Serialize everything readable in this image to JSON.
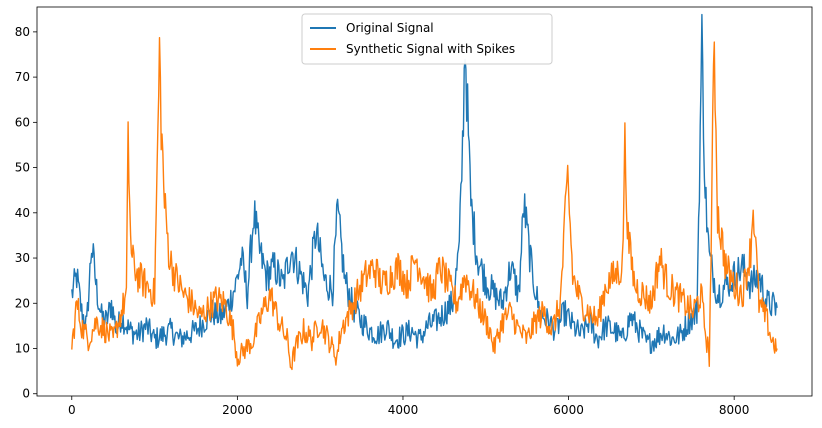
{
  "chart_data": {
    "type": "line",
    "title": "",
    "xlabel": "",
    "ylabel": "",
    "xlim": [
      -420,
      8940
    ],
    "ylim": [
      -0.5,
      85.5
    ],
    "xticks": [
      0,
      2000,
      4000,
      6000,
      8000
    ],
    "yticks": [
      0,
      10,
      20,
      30,
      40,
      50,
      60,
      70,
      80
    ],
    "xtick_labels": [
      "0",
      "2000",
      "4000",
      "6000",
      "8000"
    ],
    "ytick_labels": [
      "0",
      "10",
      "20",
      "30",
      "40",
      "50",
      "60",
      "70",
      "80"
    ],
    "grid": false,
    "legend": "upper center",
    "n_points": 8519,
    "series": [
      {
        "name": "Original Signal",
        "color": "#1f77b4",
        "x": [
          0,
          60,
          120,
          180,
          240,
          300,
          360,
          420,
          480,
          540,
          600,
          700,
          800,
          900,
          1000,
          1100,
          1200,
          1300,
          1400,
          1500,
          1600,
          1700,
          1800,
          1900,
          1980,
          2050,
          2120,
          2200,
          2260,
          2350,
          2450,
          2550,
          2650,
          2750,
          2850,
          2950,
          3050,
          3150,
          3210,
          3300,
          3400,
          3500,
          3600,
          3700,
          3800,
          3900,
          4000,
          4100,
          4200,
          4300,
          4400,
          4500,
          4600,
          4680,
          4720,
          4750,
          4780,
          4820,
          4900,
          5000,
          5100,
          5200,
          5300,
          5400,
          5460,
          5550,
          5650,
          5750,
          5850,
          5950,
          6050,
          6150,
          6250,
          6350,
          6450,
          6550,
          6650,
          6750,
          6850,
          6950,
          7050,
          7150,
          7250,
          7350,
          7450,
          7550,
          7610,
          7650,
          7700,
          7800,
          7900,
          8000,
          8100,
          8200,
          8300,
          8400,
          8519
        ],
        "y": [
          22,
          26,
          18,
          15,
          33,
          23,
          17,
          16,
          20,
          14,
          17,
          14,
          13,
          15,
          12,
          13,
          14,
          12,
          13,
          14,
          16,
          18,
          17,
          20,
          24,
          30,
          22,
          40,
          32,
          26,
          28,
          24,
          32,
          27,
          22,
          36,
          25,
          23,
          40,
          25,
          19,
          16,
          14,
          13,
          15,
          12,
          13,
          14,
          12,
          15,
          16,
          18,
          20,
          32,
          55,
          78,
          62,
          42,
          30,
          25,
          22,
          20,
          28,
          22,
          42,
          28,
          18,
          16,
          14,
          18,
          15,
          13,
          16,
          12,
          15,
          14,
          12,
          17,
          14,
          11,
          12,
          14,
          12,
          13,
          16,
          18,
          78,
          45,
          30,
          22,
          24,
          26,
          28,
          24,
          26,
          20,
          19
        ]
      },
      {
        "name": "Synthetic Signal with Spikes",
        "color": "#ff7f0e",
        "x": [
          0,
          60,
          120,
          200,
          300,
          400,
          500,
          600,
          660,
          680,
          720,
          800,
          900,
          1000,
          1060,
          1080,
          1120,
          1180,
          1250,
          1350,
          1450,
          1550,
          1650,
          1750,
          1850,
          1950,
          2000,
          2100,
          2200,
          2300,
          2400,
          2500,
          2600,
          2650,
          2700,
          2800,
          2900,
          3000,
          3100,
          3200,
          3250,
          3350,
          3450,
          3550,
          3650,
          3750,
          3850,
          3950,
          4050,
          4150,
          4250,
          4350,
          4450,
          4550,
          4650,
          4750,
          4850,
          4950,
          5050,
          5100,
          5200,
          5300,
          5400,
          5500,
          5600,
          5700,
          5800,
          5900,
          5990,
          6050,
          6150,
          6250,
          6350,
          6450,
          6550,
          6650,
          6680,
          6720,
          6800,
          6900,
          7000,
          7100,
          7200,
          7300,
          7400,
          7500,
          7600,
          7650,
          7700,
          7760,
          7800,
          7900,
          8000,
          8100,
          8200,
          8230,
          8300,
          8400,
          8450,
          8519
        ],
        "y": [
          10,
          20,
          15,
          12,
          16,
          14,
          12,
          18,
          22,
          55,
          30,
          26,
          24,
          22,
          75,
          60,
          42,
          30,
          26,
          22,
          20,
          17,
          19,
          21,
          20,
          14,
          8,
          10,
          12,
          18,
          22,
          16,
          12,
          6,
          10,
          14,
          12,
          16,
          12,
          8,
          14,
          18,
          22,
          26,
          28,
          24,
          26,
          28,
          24,
          30,
          26,
          22,
          28,
          24,
          20,
          26,
          22,
          18,
          14,
          10,
          16,
          18,
          14,
          12,
          16,
          18,
          14,
          20,
          48,
          26,
          20,
          18,
          16,
          24,
          26,
          28,
          55,
          34,
          24,
          22,
          20,
          30,
          24,
          22,
          20,
          18,
          22,
          14,
          8,
          78,
          40,
          28,
          24,
          22,
          32,
          42,
          20,
          16,
          12,
          10
        ]
      }
    ]
  }
}
